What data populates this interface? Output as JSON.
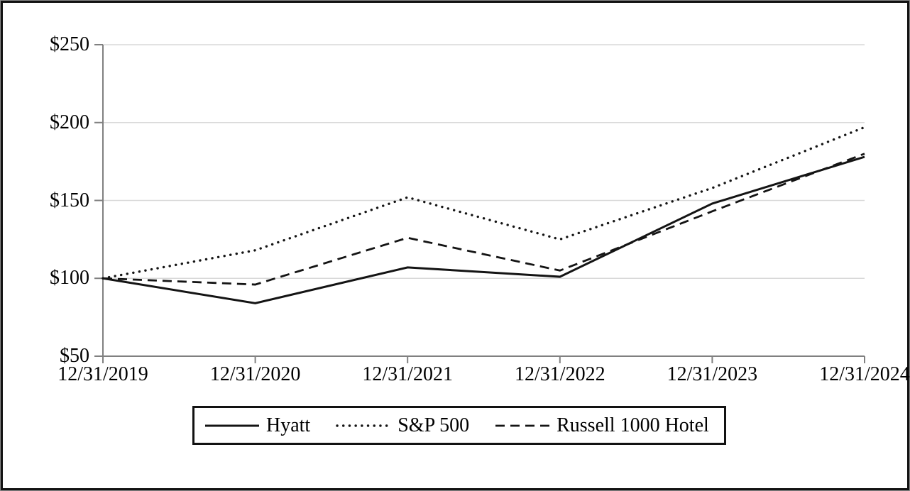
{
  "chart_data": {
    "type": "line",
    "title": "",
    "categories": [
      "12/31/2019",
      "12/31/2020",
      "12/31/2021",
      "12/31/2022",
      "12/31/2023",
      "12/31/2024"
    ],
    "series": [
      {
        "name": "Hyatt",
        "style": "solid",
        "values": [
          100,
          84,
          107,
          101,
          148,
          178
        ]
      },
      {
        "name": "S&P 500",
        "style": "dotted",
        "values": [
          100,
          118,
          152,
          125,
          158,
          197
        ]
      },
      {
        "name": "Russell 1000 Hotel",
        "style": "dashed",
        "values": [
          100,
          96,
          126,
          105,
          143,
          180
        ]
      }
    ],
    "y_axis": {
      "ticks": [
        250,
        200,
        150,
        100,
        50
      ],
      "tick_labels": [
        "$250",
        "$200",
        "$150",
        "$100",
        "$50"
      ],
      "ylim": [
        50,
        250
      ]
    },
    "grid": "horizontal-only",
    "legend_position": "bottom-boxed",
    "colors": {
      "line": "#141414",
      "grid": "#d9d9d9",
      "axis": "#808080",
      "border": "#121212",
      "background": "#ffffff"
    }
  }
}
